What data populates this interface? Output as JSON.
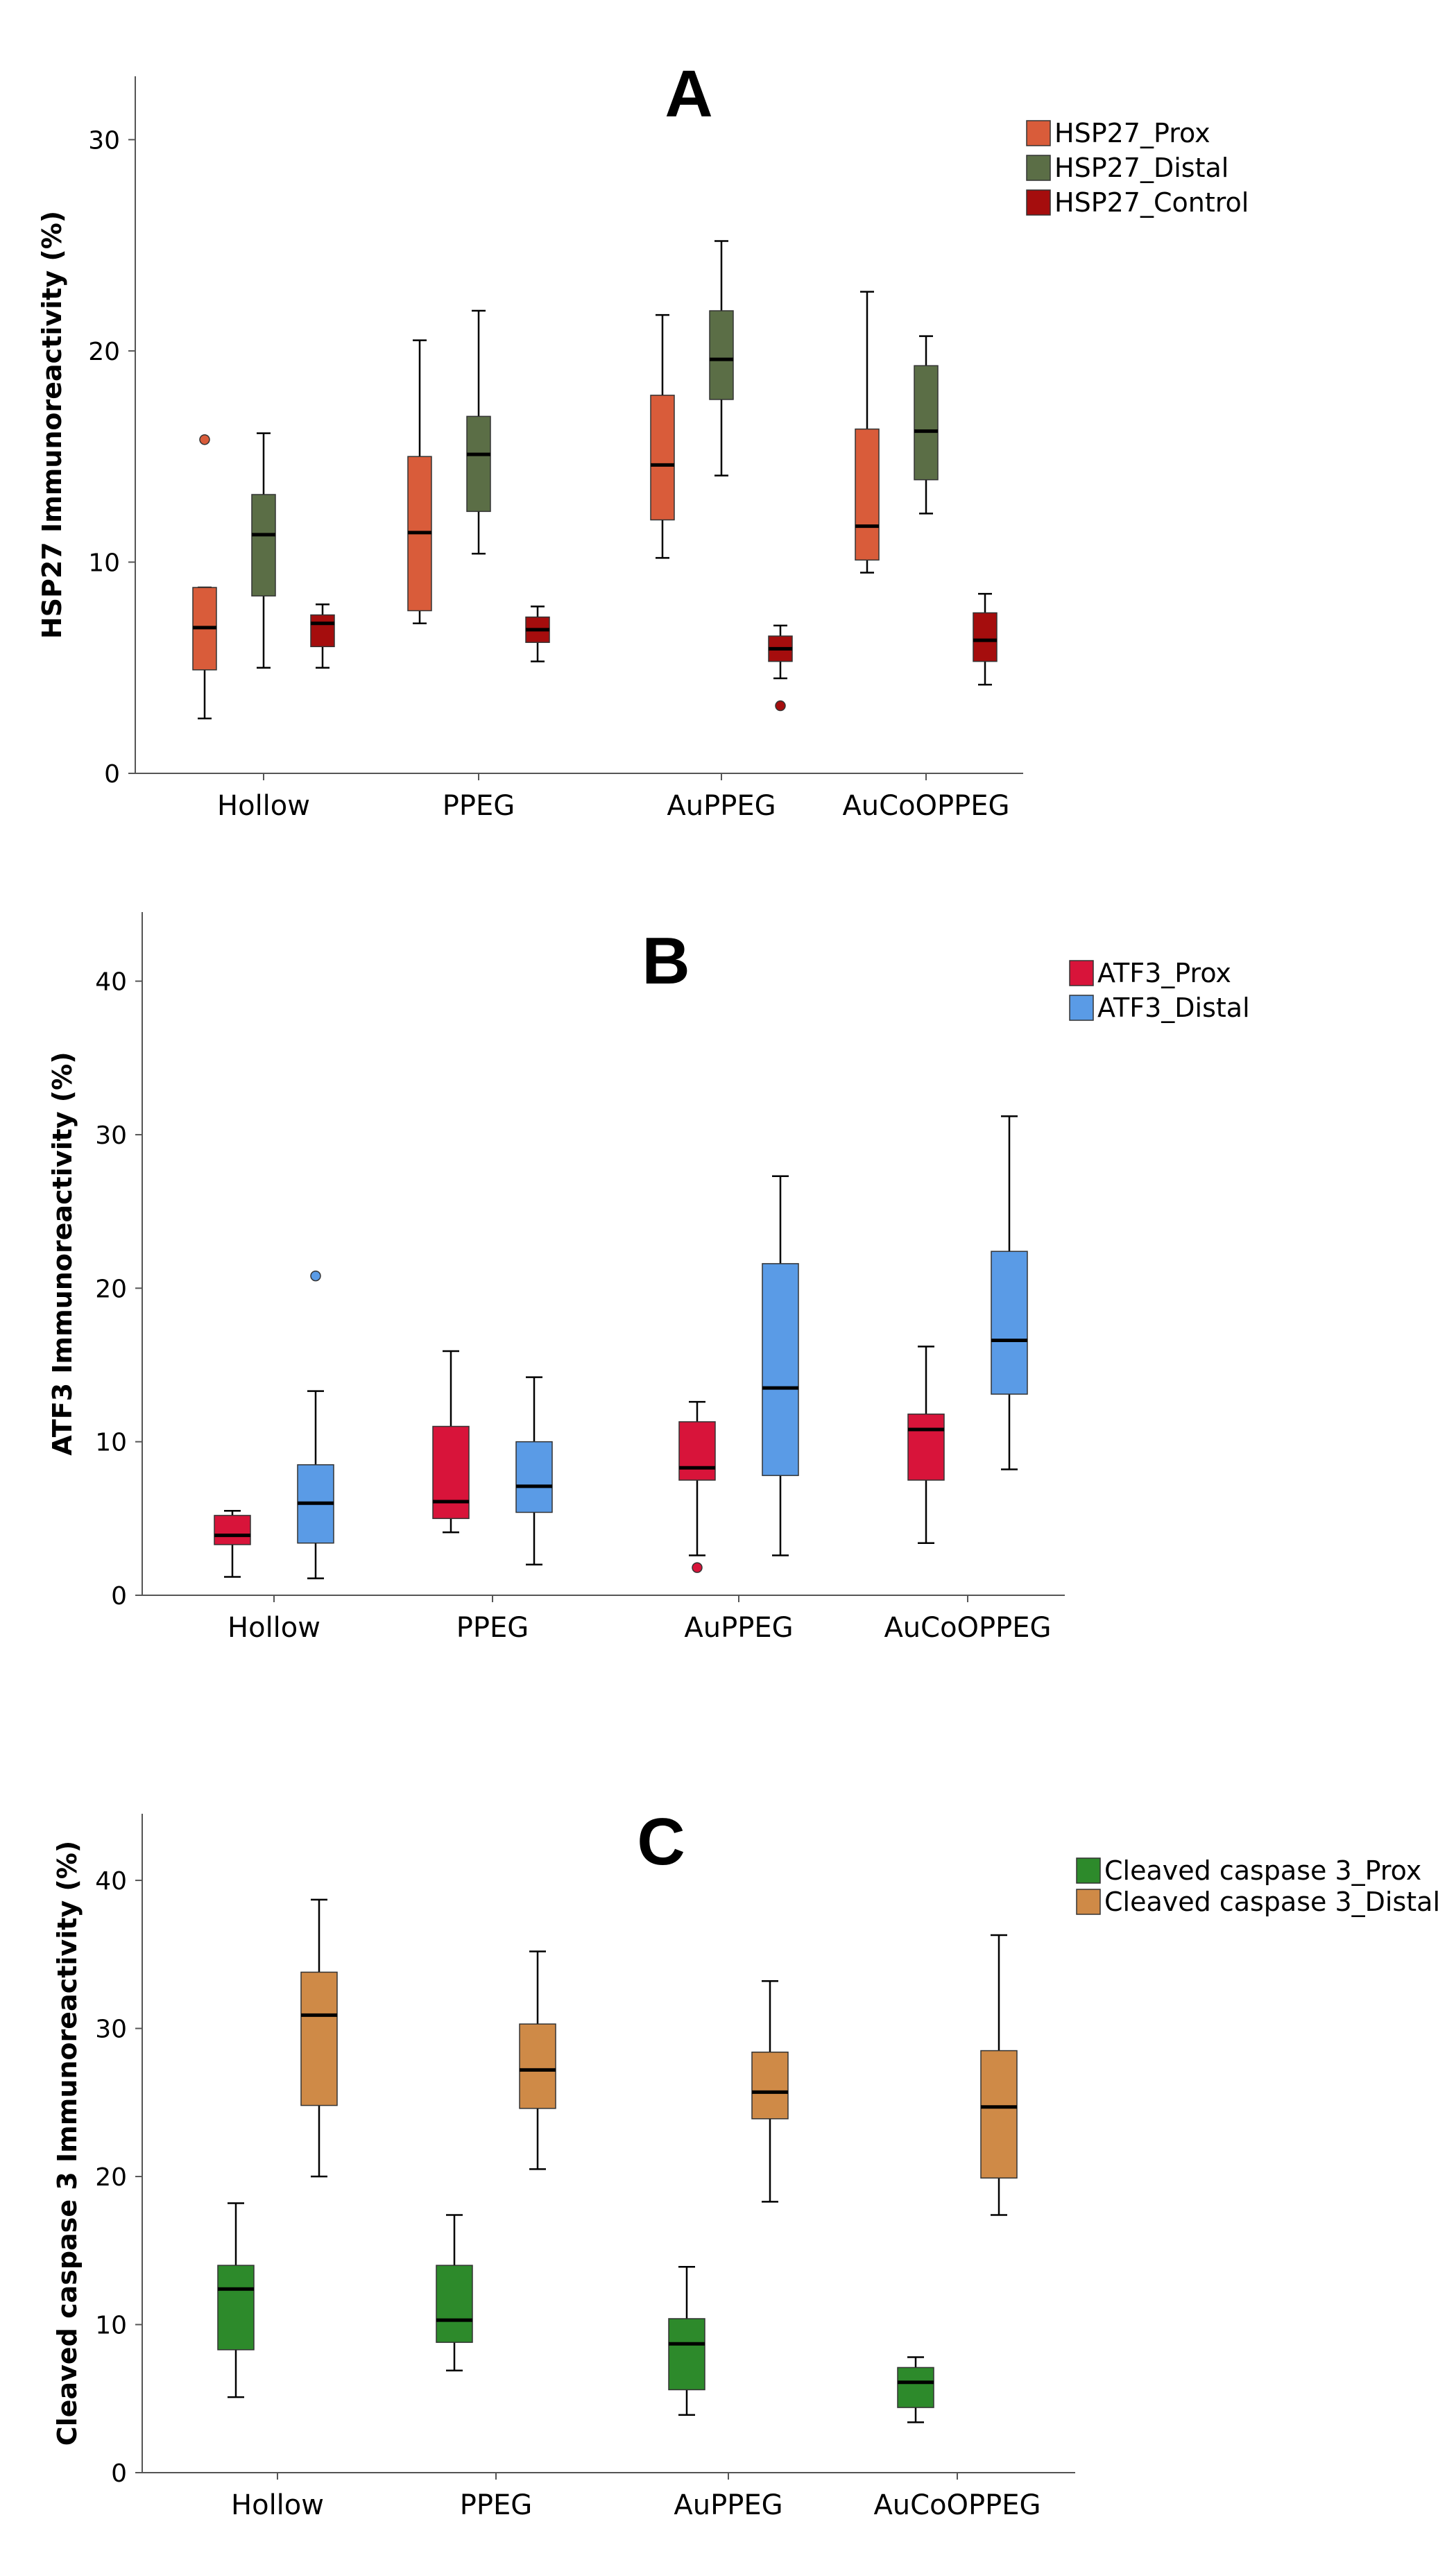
{
  "chart_data": [
    {
      "type": "boxplot",
      "panel": "A",
      "title": "A",
      "ylabel": "HSP27 Immunoreactivity (%)",
      "xlabel": "",
      "ylim": [
        0,
        33
      ],
      "yticks": [
        0,
        10,
        20,
        30
      ],
      "categories": [
        "Hollow",
        "PPEG",
        "AuPPEG",
        "AuCoOPPEG"
      ],
      "legend_position": "top-right",
      "series": [
        {
          "name": "HSP27_Prox",
          "color": "#d95c3a",
          "boxes": [
            {
              "min": 2.6,
              "q1": 4.9,
              "median": 6.9,
              "q3": 8.8,
              "max": 8.8,
              "outliers": [
                15.8
              ]
            },
            {
              "min": 7.1,
              "q1": 7.7,
              "median": 11.4,
              "q3": 15.0,
              "max": 20.5,
              "outliers": []
            },
            {
              "min": 10.2,
              "q1": 12.0,
              "median": 14.6,
              "q3": 17.9,
              "max": 21.7,
              "outliers": []
            },
            {
              "min": 9.5,
              "q1": 10.1,
              "median": 11.7,
              "q3": 16.3,
              "max": 22.8,
              "outliers": []
            }
          ]
        },
        {
          "name": "HSP27_Distal",
          "color": "#5b6e46",
          "boxes": [
            {
              "min": 5.0,
              "q1": 8.4,
              "median": 11.3,
              "q3": 13.2,
              "max": 16.1,
              "outliers": []
            },
            {
              "min": 10.4,
              "q1": 12.4,
              "median": 15.1,
              "q3": 16.9,
              "max": 21.9,
              "outliers": []
            },
            {
              "min": 14.1,
              "q1": 17.7,
              "median": 19.6,
              "q3": 21.9,
              "max": 25.2,
              "outliers": []
            },
            {
              "min": 12.3,
              "q1": 13.9,
              "median": 16.2,
              "q3": 19.3,
              "max": 20.7,
              "outliers": []
            }
          ]
        },
        {
          "name": "HSP27_Control",
          "color": "#a50d0d",
          "boxes": [
            {
              "min": 5.0,
              "q1": 6.0,
              "median": 7.1,
              "q3": 7.5,
              "max": 8.0,
              "outliers": []
            },
            {
              "min": 5.3,
              "q1": 6.2,
              "median": 6.8,
              "q3": 7.4,
              "max": 7.9,
              "outliers": []
            },
            {
              "min": 4.5,
              "q1": 5.3,
              "median": 5.9,
              "q3": 6.5,
              "max": 7.0,
              "outliers": [
                3.2
              ]
            },
            {
              "min": 4.2,
              "q1": 5.3,
              "median": 6.3,
              "q3": 7.6,
              "max": 8.5,
              "outliers": []
            }
          ]
        }
      ]
    },
    {
      "type": "boxplot",
      "panel": "B",
      "title": "B",
      "ylabel": "ATF3 Immunoreactivity (%)",
      "xlabel": "",
      "ylim": [
        0,
        44.5
      ],
      "yticks": [
        0,
        10,
        20,
        30,
        40
      ],
      "categories": [
        "Hollow",
        "PPEG",
        "AuPPEG",
        "AuCoOPPEG"
      ],
      "legend_position": "top-right",
      "series": [
        {
          "name": "ATF3_Prox",
          "color": "#d8143a",
          "boxes": [
            {
              "min": 1.2,
              "q1": 3.3,
              "median": 3.9,
              "q3": 5.2,
              "max": 5.5,
              "outliers": []
            },
            {
              "min": 4.1,
              "q1": 5.0,
              "median": 6.1,
              "q3": 11.0,
              "max": 15.9,
              "outliers": []
            },
            {
              "min": 2.6,
              "q1": 7.5,
              "median": 8.3,
              "q3": 11.3,
              "max": 12.6,
              "outliers": [
                1.8
              ]
            },
            {
              "min": 3.4,
              "q1": 7.5,
              "median": 10.8,
              "q3": 11.8,
              "max": 16.2,
              "outliers": []
            }
          ]
        },
        {
          "name": "ATF3_Distal",
          "color": "#5a9be6",
          "boxes": [
            {
              "min": 1.1,
              "q1": 3.4,
              "median": 6.0,
              "q3": 8.5,
              "max": 13.3,
              "outliers": [
                20.8
              ]
            },
            {
              "min": 2.0,
              "q1": 5.4,
              "median": 7.1,
              "q3": 10.0,
              "max": 14.2,
              "outliers": []
            },
            {
              "min": 2.6,
              "q1": 7.8,
              "median": 13.5,
              "q3": 21.6,
              "max": 27.3,
              "outliers": []
            },
            {
              "min": 8.2,
              "q1": 13.1,
              "median": 16.6,
              "q3": 22.4,
              "max": 31.2,
              "outliers": []
            }
          ]
        }
      ]
    },
    {
      "type": "boxplot",
      "panel": "C",
      "title": "C",
      "ylabel": "Cleaved caspase 3 Immunoreactivity (%)",
      "xlabel": "",
      "ylim": [
        0,
        44.5
      ],
      "yticks": [
        0,
        10,
        20,
        30,
        40
      ],
      "categories": [
        "Hollow",
        "PPEG",
        "AuPPEG",
        "AuCoOPPEG"
      ],
      "legend_position": "top-right",
      "series": [
        {
          "name": "Cleaved caspase 3_Prox",
          "color": "#2d8a2b",
          "boxes": [
            {
              "min": 5.1,
              "q1": 8.3,
              "median": 12.4,
              "q3": 14.0,
              "max": 18.2,
              "outliers": []
            },
            {
              "min": 6.9,
              "q1": 8.8,
              "median": 10.3,
              "q3": 14.0,
              "max": 17.4,
              "outliers": []
            },
            {
              "min": 3.9,
              "q1": 5.6,
              "median": 8.7,
              "q3": 10.4,
              "max": 13.9,
              "outliers": []
            },
            {
              "min": 3.4,
              "q1": 4.4,
              "median": 6.1,
              "q3": 7.1,
              "max": 7.8,
              "outliers": []
            }
          ]
        },
        {
          "name": "Cleaved caspase 3_Distal",
          "color": "#cf8a47",
          "boxes": [
            {
              "min": 20.0,
              "q1": 24.8,
              "median": 30.9,
              "q3": 33.8,
              "max": 38.7,
              "outliers": []
            },
            {
              "min": 20.5,
              "q1": 24.6,
              "median": 27.2,
              "q3": 30.3,
              "max": 35.2,
              "outliers": []
            },
            {
              "min": 18.3,
              "q1": 23.9,
              "median": 25.7,
              "q3": 28.4,
              "max": 33.2,
              "outliers": []
            },
            {
              "min": 17.4,
              "q1": 19.9,
              "median": 24.7,
              "q3": 28.5,
              "max": 36.3,
              "outliers": []
            }
          ]
        }
      ]
    }
  ]
}
